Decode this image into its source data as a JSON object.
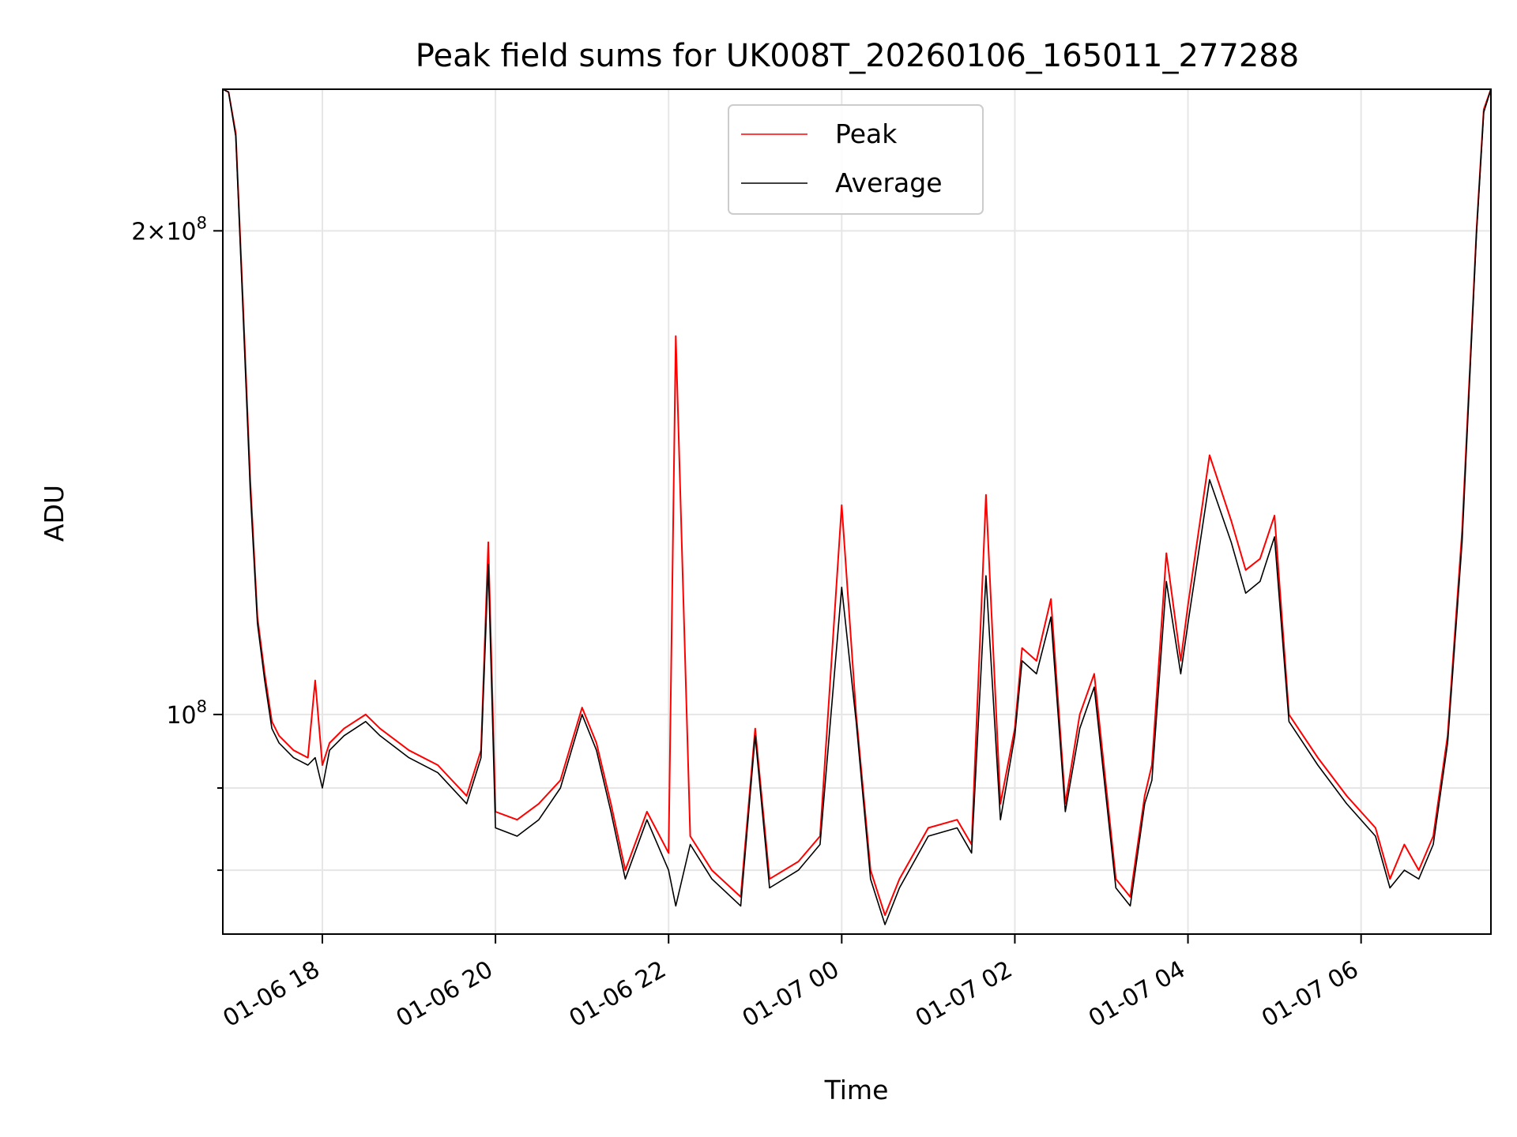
{
  "chart_data": {
    "type": "line",
    "title": "Peak field sums for UK008T_20260106_165011_277288",
    "xlabel": "Time",
    "ylabel": "ADU",
    "y_scale": "log",
    "ylim": [
      73000000,
      245000000
    ],
    "xlim": [
      "2026-01-06 16:51",
      "2026-01-07 07:30"
    ],
    "x_ticks": [
      {
        "value": "2026-01-06 18:00",
        "label": "01-06 18"
      },
      {
        "value": "2026-01-06 20:00",
        "label": "01-06 20"
      },
      {
        "value": "2026-01-06 22:00",
        "label": "01-06 22"
      },
      {
        "value": "2026-01-07 00:00",
        "label": "01-07 00"
      },
      {
        "value": "2026-01-07 02:00",
        "label": "01-07 02"
      },
      {
        "value": "2026-01-07 04:00",
        "label": "01-07 04"
      },
      {
        "value": "2026-01-07 06:00",
        "label": "01-07 06"
      }
    ],
    "y_ticks": [
      {
        "value": 100000000,
        "base": "10",
        "exp": "8",
        "mant": ""
      },
      {
        "value": 200000000,
        "base": "10",
        "exp": "8",
        "mant": "2"
      }
    ],
    "y_minor_ticks": [
      80000000,
      90000000
    ],
    "grid": true,
    "legend_position": "top-center",
    "x": [
      "2026-01-06 16:51",
      "2026-01-06 16:55",
      "2026-01-06 17:00",
      "2026-01-06 17:05",
      "2026-01-06 17:10",
      "2026-01-06 17:15",
      "2026-01-06 17:20",
      "2026-01-06 17:25",
      "2026-01-06 17:30",
      "2026-01-06 17:40",
      "2026-01-06 17:50",
      "2026-01-06 17:55",
      "2026-01-06 18:00",
      "2026-01-06 18:05",
      "2026-01-06 18:15",
      "2026-01-06 18:30",
      "2026-01-06 18:40",
      "2026-01-06 19:00",
      "2026-01-06 19:20",
      "2026-01-06 19:40",
      "2026-01-06 19:50",
      "2026-01-06 19:55",
      "2026-01-06 20:00",
      "2026-01-06 20:15",
      "2026-01-06 20:30",
      "2026-01-06 20:45",
      "2026-01-06 21:00",
      "2026-01-06 21:10",
      "2026-01-06 21:20",
      "2026-01-06 21:30",
      "2026-01-06 21:45",
      "2026-01-06 22:00",
      "2026-01-06 22:05",
      "2026-01-06 22:15",
      "2026-01-06 22:30",
      "2026-01-06 22:50",
      "2026-01-06 23:00",
      "2026-01-06 23:10",
      "2026-01-06 23:30",
      "2026-01-06 23:45",
      "2026-01-07 00:00",
      "2026-01-07 00:10",
      "2026-01-07 00:20",
      "2026-01-07 00:30",
      "2026-01-07 00:40",
      "2026-01-07 01:00",
      "2026-01-07 01:20",
      "2026-01-07 01:30",
      "2026-01-07 01:40",
      "2026-01-07 01:50",
      "2026-01-07 02:00",
      "2026-01-07 02:05",
      "2026-01-07 02:15",
      "2026-01-07 02:25",
      "2026-01-07 02:35",
      "2026-01-07 02:45",
      "2026-01-07 02:55",
      "2026-01-07 03:10",
      "2026-01-07 03:20",
      "2026-01-07 03:30",
      "2026-01-07 03:35",
      "2026-01-07 03:45",
      "2026-01-07 03:55",
      "2026-01-07 04:00",
      "2026-01-07 04:15",
      "2026-01-07 04:30",
      "2026-01-07 04:40",
      "2026-01-07 04:50",
      "2026-01-07 05:00",
      "2026-01-07 05:10",
      "2026-01-07 05:30",
      "2026-01-07 05:50",
      "2026-01-07 06:10",
      "2026-01-07 06:20",
      "2026-01-07 06:30",
      "2026-01-07 06:40",
      "2026-01-07 06:50",
      "2026-01-07 07:00",
      "2026-01-07 07:10",
      "2026-01-07 07:20",
      "2026-01-07 07:25",
      "2026-01-07 07:30"
    ],
    "series": [
      {
        "name": "Peak",
        "color": "#ff0000",
        "values": [
          245000000,
          244000000,
          230000000,
          180000000,
          140000000,
          115000000,
          106000000,
          99000000,
          97000000,
          95000000,
          94000000,
          105000000,
          93000000,
          96000000,
          98000000,
          100000000,
          98000000,
          95000000,
          93000000,
          89000000,
          95000000,
          128000000,
          87000000,
          86000000,
          88000000,
          91000000,
          101000000,
          96000000,
          88000000,
          80000000,
          87000000,
          82000000,
          172000000,
          84000000,
          80000000,
          77000000,
          98000000,
          79000000,
          81000000,
          84000000,
          135000000,
          100000000,
          80000000,
          75000000,
          79000000,
          85000000,
          86000000,
          83000000,
          137000000,
          88000000,
          98000000,
          110000000,
          108000000,
          118000000,
          88000000,
          100000000,
          106000000,
          79000000,
          77000000,
          89000000,
          93000000,
          126000000,
          108000000,
          117000000,
          145000000,
          132000000,
          123000000,
          125000000,
          133000000,
          100000000,
          94000000,
          89000000,
          85000000,
          79000000,
          83000000,
          80000000,
          84000000,
          97000000,
          130000000,
          200000000,
          238000000,
          245000000
        ]
      },
      {
        "name": "Average",
        "color": "#000000",
        "values": [
          245000000,
          244000000,
          229000000,
          178000000,
          138000000,
          114000000,
          105000000,
          98000000,
          96000000,
          94000000,
          93000000,
          94000000,
          90000000,
          95000000,
          97000000,
          99000000,
          97000000,
          94000000,
          92000000,
          88000000,
          94000000,
          124000000,
          85000000,
          84000000,
          86000000,
          90000000,
          100000000,
          95000000,
          87000000,
          79000000,
          86000000,
          80000000,
          76000000,
          83000000,
          79000000,
          76000000,
          97000000,
          78000000,
          80000000,
          83000000,
          120000000,
          99000000,
          79000000,
          74000000,
          78000000,
          84000000,
          85000000,
          82000000,
          122000000,
          86000000,
          97000000,
          108000000,
          106000000,
          115000000,
          87000000,
          98000000,
          104000000,
          78000000,
          76000000,
          88000000,
          91000000,
          121000000,
          106000000,
          114000000,
          140000000,
          128000000,
          119000000,
          121000000,
          129000000,
          99000000,
          93000000,
          88000000,
          84000000,
          78000000,
          80000000,
          79000000,
          83000000,
          96000000,
          128000000,
          199000000,
          237000000,
          245000000
        ]
      }
    ]
  }
}
